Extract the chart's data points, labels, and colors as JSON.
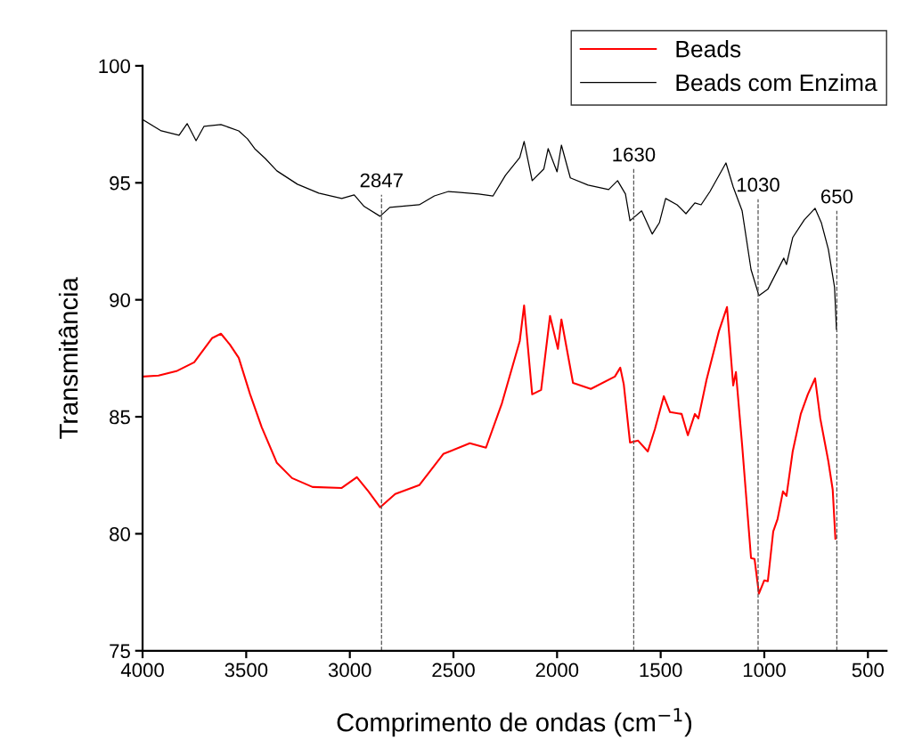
{
  "chart_data": {
    "type": "line",
    "xlabel": "Comprimento de ondas (cm$^{−1}$)",
    "ylabel": "Transmitância",
    "xlim": [
      4000,
      410
    ],
    "xticks": [
      4000,
      3500,
      3000,
      2500,
      2000,
      1500,
      1000,
      500
    ],
    "ylim": [
      75,
      100
    ],
    "yticks": [
      75,
      80,
      85,
      90,
      95,
      100
    ],
    "grid": false,
    "legend": "top right",
    "line_style": "solid",
    "marker": "none",
    "ref_lines": [
      {
        "axis": "x",
        "value": 2847,
        "label": "2847",
        "color": "#555555",
        "line_style": "dashed"
      },
      {
        "axis": "x",
        "value": 1630,
        "label": "1630",
        "color": "#555555",
        "line_style": "dashed"
      },
      {
        "axis": "x",
        "value": 1030,
        "label": "1030",
        "color": "#555555",
        "line_style": "dashed"
      },
      {
        "axis": "x",
        "value": 650,
        "label": "650",
        "color": "#555555",
        "line_style": "dashed"
      }
    ],
    "series": [
      {
        "name": "Beads",
        "color": "#ff0000",
        "x": [
          3996,
          3923,
          3837,
          3751,
          3665,
          3622,
          3579,
          3536,
          3481,
          3425,
          3352,
          3279,
          3180,
          3039,
          2966,
          2910,
          2854,
          2781,
          2665,
          2549,
          2421,
          2343,
          2266,
          2180,
          2159,
          2120,
          2077,
          2034,
          1996,
          1979,
          1923,
          1837,
          1721,
          1695,
          1678,
          1648,
          1609,
          1562,
          1528,
          1485,
          1455,
          1399,
          1369,
          1335,
          1318,
          1279,
          1219,
          1180,
          1150,
          1137,
          1107,
          1064,
          1047,
          1026,
          1000,
          983,
          957,
          936,
          910,
          893,
          863,
          824,
          790,
          755,
          730,
          708,
          691,
          670,
          657
        ],
        "values": [
          86.72,
          86.76,
          86.95,
          87.33,
          88.36,
          88.55,
          88.09,
          87.52,
          85.96,
          84.55,
          83.03,
          82.38,
          82.0,
          81.96,
          82.42,
          81.81,
          81.13,
          81.7,
          82.08,
          83.41,
          83.87,
          83.68,
          85.58,
          88.24,
          89.76,
          85.96,
          86.15,
          89.31,
          87.9,
          89.16,
          86.45,
          86.19,
          86.72,
          87.1,
          86.38,
          83.9,
          83.98,
          83.52,
          84.47,
          85.88,
          85.2,
          85.12,
          84.21,
          85.12,
          84.93,
          86.57,
          88.66,
          89.69,
          86.34,
          86.91,
          83.79,
          78.96,
          78.92,
          77.44,
          78.01,
          77.97,
          80.1,
          80.63,
          81.81,
          81.62,
          83.52,
          85.12,
          85.96,
          86.64,
          84.93,
          83.9,
          83.1,
          81.89,
          79.79
        ]
      },
      {
        "name": "Beads com Enzima",
        "color": "#000000",
        "x": [
          3996,
          3910,
          3824,
          3785,
          3742,
          3704,
          3622,
          3536,
          3494,
          3459,
          3408,
          3352,
          3253,
          3150,
          3039,
          2979,
          2931,
          2854,
          2807,
          2665,
          2592,
          2524,
          2378,
          2309,
          2249,
          2180,
          2159,
          2120,
          2064,
          2043,
          2000,
          1979,
          1936,
          1850,
          1751,
          1708,
          1670,
          1648,
          1592,
          1541,
          1506,
          1476,
          1421,
          1378,
          1335,
          1305,
          1262,
          1185,
          1150,
          1107,
          1064,
          1026,
          983,
          906,
          893,
          863,
          807,
          755,
          725,
          691,
          670,
          661,
          652
        ],
        "values": [
          97.68,
          97.22,
          97.03,
          97.53,
          96.8,
          97.41,
          97.49,
          97.22,
          96.88,
          96.46,
          96.04,
          95.51,
          94.94,
          94.56,
          94.33,
          94.48,
          93.99,
          93.57,
          93.95,
          94.06,
          94.44,
          94.63,
          94.52,
          94.44,
          95.32,
          96.08,
          96.77,
          95.09,
          95.59,
          96.46,
          95.47,
          96.61,
          95.21,
          94.9,
          94.71,
          95.09,
          94.52,
          93.38,
          93.8,
          92.81,
          93.3,
          94.33,
          94.06,
          93.68,
          94.14,
          94.06,
          94.63,
          95.85,
          94.82,
          93.8,
          91.29,
          90.18,
          90.45,
          91.78,
          91.51,
          92.66,
          93.42,
          93.91,
          93.3,
          92.16,
          91.02,
          90.53,
          88.74
        ]
      }
    ]
  }
}
